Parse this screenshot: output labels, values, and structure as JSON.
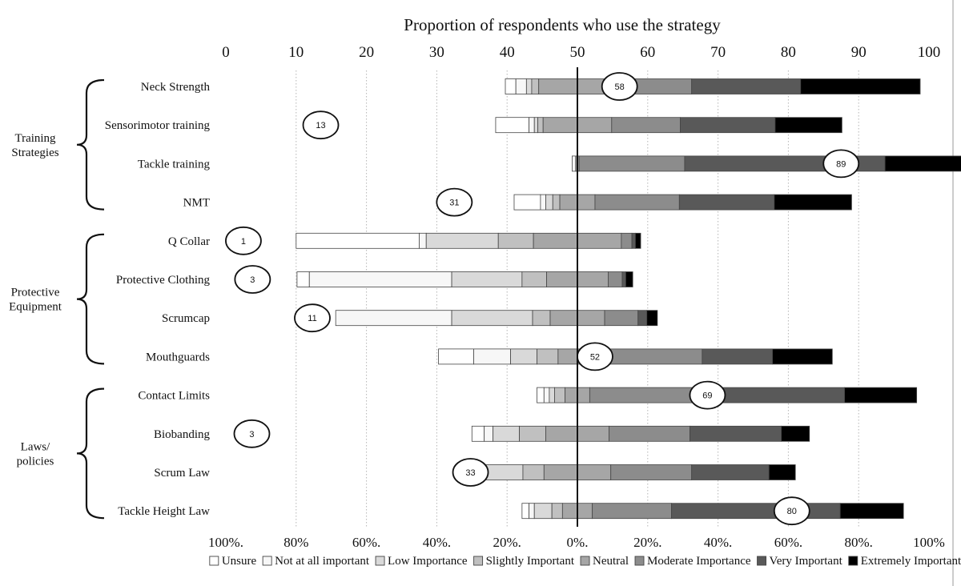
{
  "chart_data": {
    "type": "bar",
    "subtype": "diverging-stacked-horizontal",
    "title": "Proportion of respondents who use the strategy",
    "top_axis": {
      "range": [
        0,
        100
      ],
      "ticks": [
        "0",
        "10",
        "20",
        "30",
        "40",
        "50",
        "60",
        "70",
        "80",
        "90",
        "100"
      ]
    },
    "bottom_axis": {
      "range": [
        -100,
        100
      ],
      "ticks": [
        "100%.",
        "80%",
        "60%.",
        "40%.",
        "20%.",
        "0%.",
        "20%.",
        "40%.",
        "60%.",
        "80%.",
        "100%"
      ]
    },
    "grid": "dotted vertical",
    "legend_position": "bottom",
    "groups": [
      {
        "label": "Training Strategies",
        "label_lines": [
          "Training",
          "Strategies"
        ],
        "from": 0,
        "to": 3
      },
      {
        "label": "Protective Equipment",
        "label_lines": [
          "Protective",
          "Equipment"
        ],
        "from": 4,
        "to": 7
      },
      {
        "label": "Laws/ policies",
        "label_lines": [
          "Laws/",
          "policies"
        ],
        "from": 8,
        "to": 11
      }
    ],
    "categories": [
      "Neck Strength",
      "Sensorimotor training",
      "Tackle training",
      "NMT",
      "Q Collar",
      "Protective Clothing",
      "Scrumcap",
      "Mouthguards",
      "Contact Limits",
      "Biobanding",
      "Scrum Law",
      "Tackle Height Law"
    ],
    "usage_percent": [
      58,
      13,
      89,
      31,
      1,
      3,
      11,
      52,
      69,
      3,
      33,
      80
    ],
    "usage_bubble_x": [
      56,
      13.5,
      87.5,
      32.5,
      2.5,
      3.8,
      12.3,
      52.5,
      68.5,
      3.7,
      34.8,
      80.5
    ],
    "neutral_index": 4,
    "series": [
      {
        "name": "Unsure",
        "values": [
          3,
          9.5,
          0,
          7.5,
          35,
          3.5,
          0,
          10,
          2,
          3.5,
          1,
          2
        ]
      },
      {
        "name": "Not at all important",
        "values": [
          3,
          1.5,
          1,
          1.5,
          2,
          40.5,
          33,
          10.5,
          1.5,
          2.5,
          1.5,
          1.5
        ]
      },
      {
        "name": "Low Importance",
        "values": [
          1.5,
          1,
          0,
          2,
          20.5,
          20,
          23,
          7.5,
          1.5,
          7.5,
          16,
          5
        ]
      },
      {
        "name": "Slightly Important",
        "values": [
          2,
          1.5,
          0,
          2,
          10,
          7,
          5,
          6,
          3,
          7.5,
          6,
          3
        ]
      },
      {
        "name": "Neutral",
        "values": [
          22,
          19.5,
          1,
          10,
          25,
          17.5,
          15.5,
          11,
          7,
          18,
          19,
          8.5
        ]
      },
      {
        "name": "Moderate Importance",
        "values": [
          21.5,
          19.5,
          30,
          24,
          3,
          4,
          9.5,
          30,
          32.5,
          23,
          23,
          22.5
        ]
      },
      {
        "name": "Very Important",
        "values": [
          31,
          27,
          57,
          27,
          1,
          1,
          2.5,
          20,
          40,
          26,
          22,
          48
        ]
      },
      {
        "name": "Extremely Important",
        "values": [
          34,
          19,
          60,
          22,
          1.5,
          2,
          3,
          17,
          20.5,
          8,
          7.5,
          18
        ]
      }
    ]
  },
  "colors": {
    "Unsure": "#ffffff",
    "Not at all important": "#f7f7f7",
    "Low Importance": "#d9d9d9",
    "Slightly Important": "#c0c0c0",
    "Neutral": "#a6a6a6",
    "Moderate Importance": "#8c8c8c",
    "Very Important": "#595959",
    "Extremely Important": "#000000",
    "edge": "#444444",
    "grid": "#b5b5b5"
  }
}
